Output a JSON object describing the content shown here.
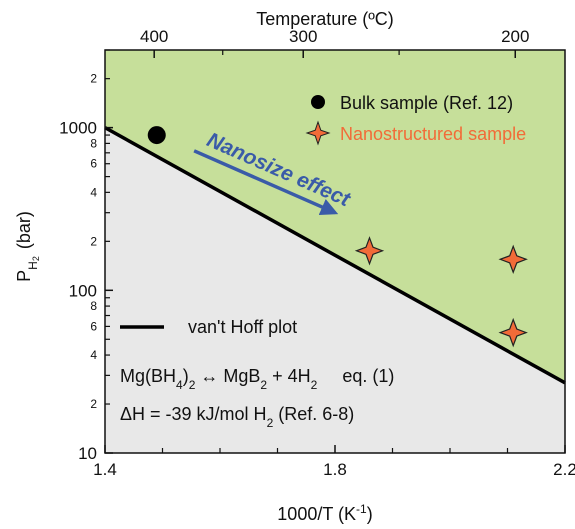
{
  "chart_data": {
    "type": "scatter",
    "title": "",
    "x_axis": {
      "label_main": "1000/T (K",
      "label_sup": "-1",
      "label_end": ")",
      "range": [
        1.4,
        2.2
      ],
      "major_ticks": [
        1.4,
        1.8,
        2.2
      ],
      "major_tick_labels": [
        "1.4",
        "1.8",
        "2.2"
      ]
    },
    "top_axis": {
      "label": "Temperature (ºC)",
      "ticks_celsius": [
        400,
        300,
        200
      ],
      "tick_labels": [
        "400",
        "300",
        "200"
      ]
    },
    "y_axis": {
      "label_main": "P",
      "label_sub1": "H",
      "label_sub2": "2",
      "label_end": " (bar)",
      "range": [
        10,
        3000
      ],
      "scale": "log",
      "major_ticks": [
        10,
        100,
        1000
      ],
      "major_tick_labels": [
        "10",
        "100",
        "1000"
      ],
      "minor_ticks": [
        {
          "value": 20,
          "label": "2"
        },
        {
          "value": 40,
          "label": "4"
        },
        {
          "value": 60,
          "label": "6"
        },
        {
          "value": 80,
          "label": "8"
        },
        {
          "value": 200,
          "label": "2"
        },
        {
          "value": 400,
          "label": "4"
        },
        {
          "value": 600,
          "label": "6"
        },
        {
          "value": 800,
          "label": "8"
        },
        {
          "value": 2000,
          "label": "2"
        }
      ]
    },
    "vant_hoff_line": {
      "name": "van't Hoff plot",
      "points": [
        {
          "x": 1.4,
          "y": 1000
        },
        {
          "x": 2.2,
          "y": 27
        }
      ]
    },
    "series": [
      {
        "name": "Bulk sample (Ref. 12)",
        "marker": "circle",
        "color": "#000000",
        "points": [
          {
            "x": 1.49,
            "y": 900
          }
        ]
      },
      {
        "name": "Nanostructured sample",
        "marker": "star4",
        "color": "#f26b38",
        "points": [
          {
            "x": 1.86,
            "y": 175
          },
          {
            "x": 2.11,
            "y": 155
          },
          {
            "x": 2.11,
            "y": 55
          }
        ]
      }
    ],
    "annotations": {
      "arrow_label": "Nanosize effect",
      "equation_parts": [
        "Mg(BH",
        "4",
        ")",
        "2",
        " ↔ MgB",
        "2",
        " + 4H",
        "2",
        "     eq. (1)"
      ],
      "delta_h_parts": [
        "ΔH = -39 kJ/mol H",
        "2",
        " (Ref. 6-8)"
      ]
    },
    "colors": {
      "upper_region": "#c6df9a",
      "lower_region": "#e8e8e8",
      "line": "#000000",
      "arrow": "#3a5ba8",
      "nano_marker": "#f26b38",
      "nano_text": "#f26b38",
      "bulk_text": "#111111"
    },
    "legend_placement": "top-right",
    "grid": false
  }
}
